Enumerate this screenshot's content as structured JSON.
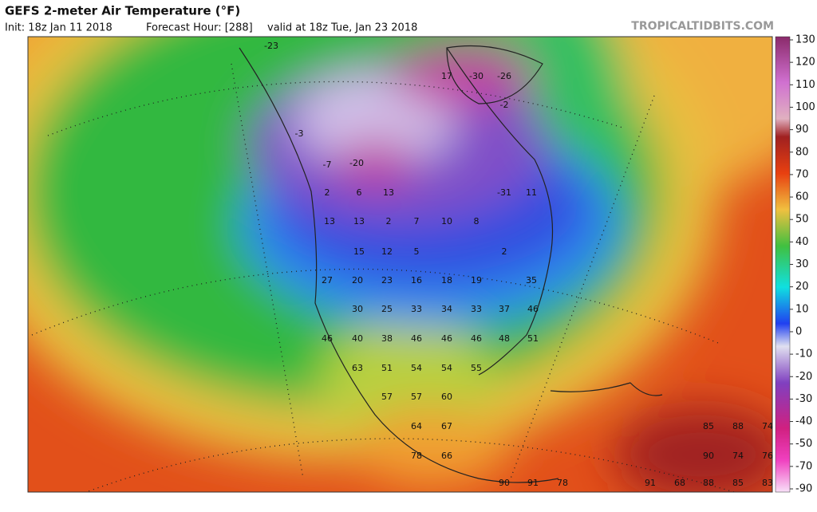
{
  "header": {
    "title": "GEFS 2-meter Air Temperature (°F)",
    "init": "Init: 18z Jan 11 2018",
    "forecast_hour": "Forecast Hour: [288]",
    "valid": "valid at 18z Tue, Jan 23 2018",
    "watermark": "TROPICALTIDBITS.COM"
  },
  "colorbar": {
    "ticks": [
      130,
      120,
      110,
      100,
      90,
      80,
      70,
      60,
      50,
      40,
      30,
      20,
      10,
      0,
      -10,
      -20,
      -30,
      -40,
      -50,
      -70,
      -90
    ]
  },
  "map": {
    "labels": [
      -23,
      17,
      -30,
      -26,
      -2,
      -3,
      -20,
      -7,
      2,
      6,
      13,
      -31,
      11,
      13,
      13,
      2,
      7,
      10,
      8,
      15,
      12,
      5,
      2,
      27,
      20,
      23,
      16,
      18,
      19,
      35,
      30,
      25,
      33,
      34,
      33,
      37,
      46,
      46,
      40,
      38,
      46,
      46,
      46,
      48,
      51,
      63,
      51,
      54,
      54,
      55,
      57,
      57,
      60,
      64,
      67,
      78,
      66,
      85,
      88,
      74,
      90,
      74,
      76,
      90,
      91,
      78,
      91,
      68,
      88,
      85,
      83
    ]
  }
}
